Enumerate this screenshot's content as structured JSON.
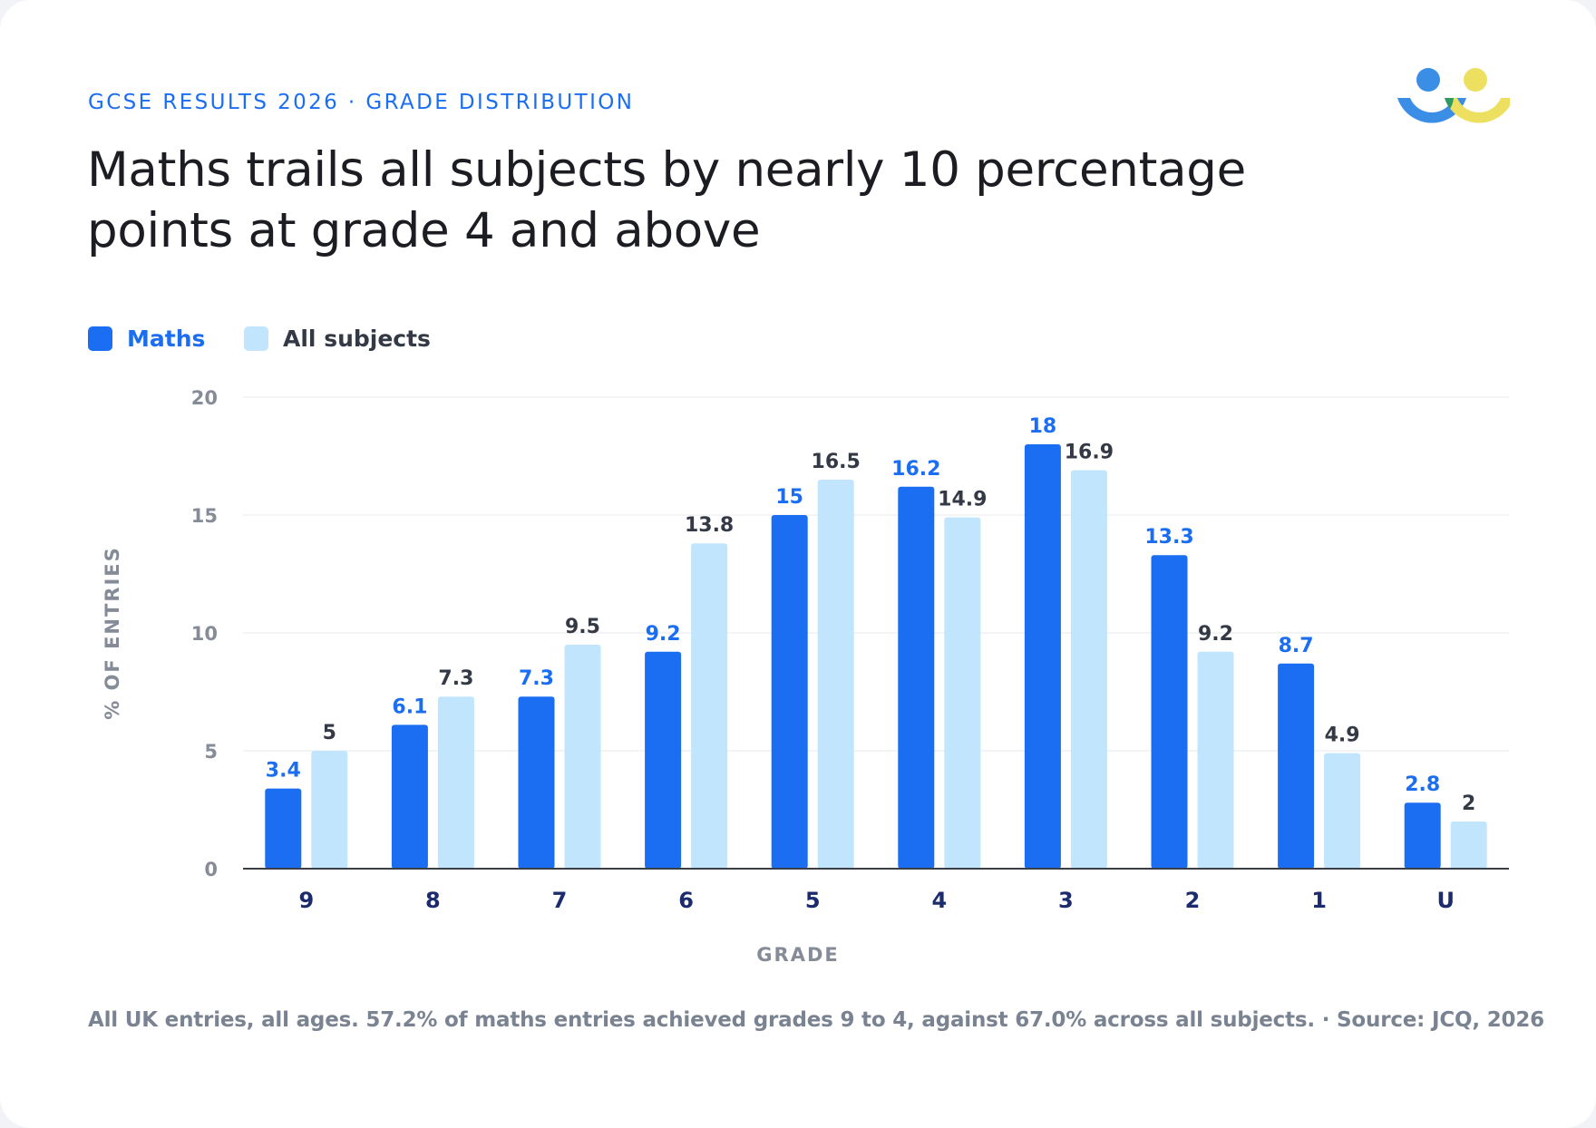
{
  "header": {
    "eyebrow": "GCSE RESULTS 2026 · GRADE DISTRIBUTION",
    "title": "Maths trails all subjects by nearly 10 percentage points at grade 4 and above"
  },
  "logo": {
    "icon": "two-people-logo-icon",
    "colors": [
      "#3a8ee6",
      "#2e9a63",
      "#ede060"
    ]
  },
  "legend": [
    {
      "label": "Maths",
      "color": "#1b6ef2",
      "text_color": "#1b6ef2"
    },
    {
      "label": "All subjects",
      "color": "#c0e5fd",
      "text_color": "#333a45"
    }
  ],
  "chart_data": {
    "type": "bar",
    "categories": [
      "9",
      "8",
      "7",
      "6",
      "5",
      "4",
      "3",
      "2",
      "1",
      "U"
    ],
    "series": [
      {
        "name": "Maths",
        "values": [
          3.4,
          6.1,
          7.3,
          9.2,
          15,
          16.2,
          18,
          13.3,
          8.7,
          2.8
        ],
        "color": "#1b6ef2",
        "label_color": "#1b6ef2"
      },
      {
        "name": "All subjects",
        "values": [
          5,
          7.3,
          9.5,
          13.8,
          16.5,
          14.9,
          16.9,
          9.2,
          4.9,
          2
        ],
        "color": "#c0e5fd",
        "label_color": "#333a45"
      }
    ],
    "xlabel": "GRADE",
    "ylabel": "% OF ENTRIES",
    "ylim": [
      0,
      20
    ],
    "yticks": [
      0,
      5,
      10,
      15,
      20
    ],
    "grid": true,
    "legend": "top-left"
  },
  "footnote": "All UK entries, all ages. 57.2% of maths entries achieved grades 9 to 4, against 67.0% across all subjects. · Source: JCQ, 2026"
}
